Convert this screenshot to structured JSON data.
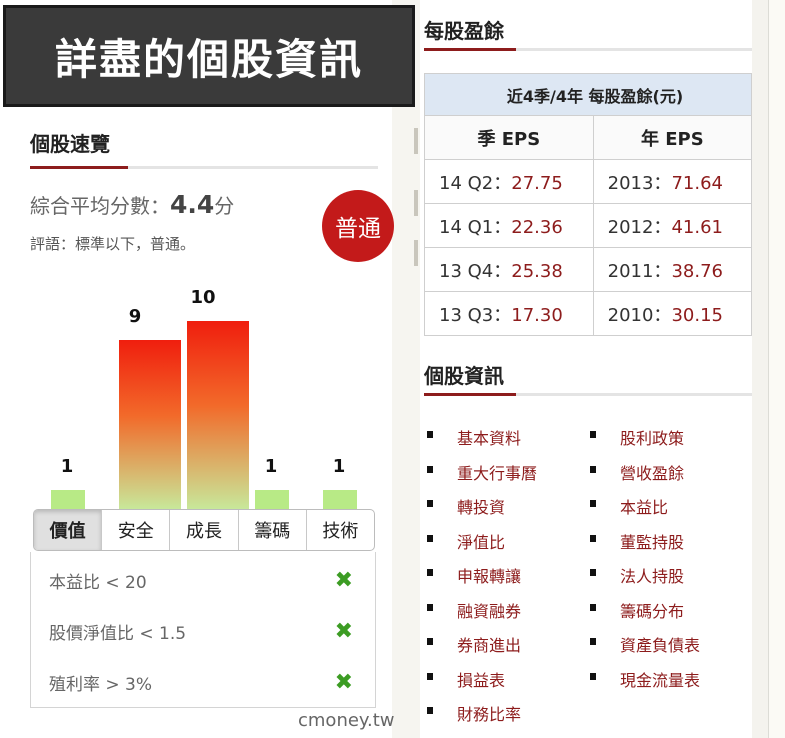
{
  "banner": {
    "title": "詳盡的個股資訊"
  },
  "overview": {
    "title": "個股速覽",
    "score_label": "綜合平均分數：",
    "score_value": "4.4",
    "score_unit": "分",
    "comment": "評語：標準以下，普通。",
    "badge": "普通",
    "bars": [
      {
        "label": "價值",
        "score": 1
      },
      {
        "label": "安全",
        "score": 9
      },
      {
        "label": "成長",
        "score": 10
      },
      {
        "label": "籌碼",
        "score": 1
      },
      {
        "label": "技術",
        "score": 1
      }
    ],
    "active_tab": "價值",
    "criteria": [
      {
        "text": "本益比 < 20",
        "icon": "cross-icon"
      },
      {
        "text": "股價淨值比 < 1.5",
        "icon": "cross-icon"
      },
      {
        "text": "殖利率 > 3%",
        "icon": "cross-icon"
      }
    ],
    "watermark": "cmoney.tw"
  },
  "eps": {
    "title": "每股盈餘",
    "caption": "近4季/4年 每股盈餘(元)",
    "headers": [
      "季 EPS",
      "年 EPS"
    ],
    "rows": [
      {
        "q": "14 Q2：",
        "qv": "27.75",
        "y": "2013：",
        "yv": "71.64"
      },
      {
        "q": "14 Q1：",
        "qv": "22.36",
        "y": "2012：",
        "yv": "41.61"
      },
      {
        "q": "13 Q4：",
        "qv": "25.38",
        "y": "2011：",
        "yv": "38.76"
      },
      {
        "q": "13 Q3：",
        "qv": "17.30",
        "y": "2010：",
        "yv": "30.15"
      }
    ]
  },
  "info": {
    "title": "個股資訊",
    "left_links": [
      "基本資料",
      "重大行事曆",
      "轉投資",
      "淨值比",
      "申報轉讓",
      "融資融券",
      "券商進出",
      "損益表",
      "財務比率"
    ],
    "right_links": [
      "股利政策",
      "營收盈餘",
      "本益比",
      "董監持股",
      "法人持股",
      "籌碼分布",
      "資產負債表",
      "現金流量表"
    ]
  },
  "colors": {
    "accent": "#8d1c1c",
    "badge": "#c31a1a",
    "check": "#3c9c23"
  }
}
